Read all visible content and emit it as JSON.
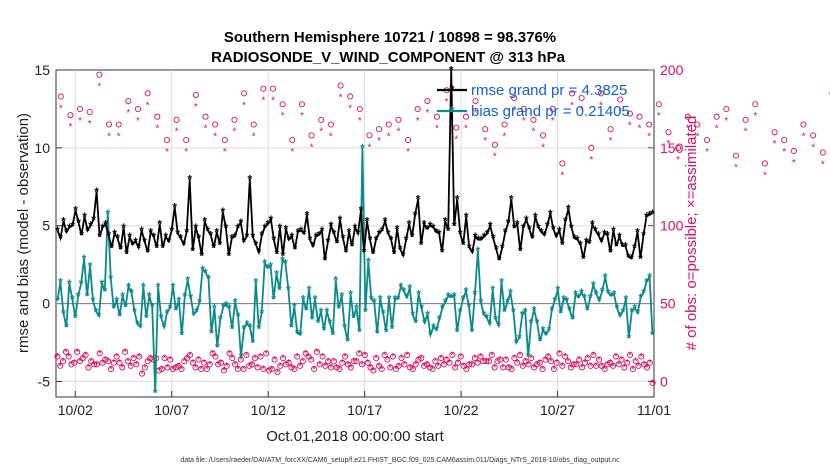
{
  "chart_data": {
    "type": "line",
    "title": "Southern Hemisphere 10721 / 10898 = 98.376%",
    "subtitle": "RADIOSONDE_V_WIND_COMPONENT @ 313 hPa",
    "xlabel": "Oct.01,2018 00:00:00 start",
    "ylabel": "rmse and bias (model - observation)",
    "ylabel_right": "# of obs: o=possible; ×=assimilated",
    "x_ticks": [
      {
        "value": 1.25,
        "label": "10/02"
      },
      {
        "value": 6.25,
        "label": "10/07"
      },
      {
        "value": 11.25,
        "label": "10/12"
      },
      {
        "value": 16.25,
        "label": "10/17"
      },
      {
        "value": 21.25,
        "label": "10/22"
      },
      {
        "value": 26.25,
        "label": "10/27"
      },
      {
        "value": 31.25,
        "label": "11/01"
      }
    ],
    "xlim": [
      0.25,
      31.25
    ],
    "ylim": [
      -6,
      15
    ],
    "ylim_right": [
      -10,
      200
    ],
    "y_ticks": [
      -5,
      0,
      5,
      10,
      15
    ],
    "y_ticks_right": [
      0,
      50,
      100,
      150,
      200
    ],
    "grid": true,
    "legend_position": "top-right",
    "series": [
      {
        "name": "rmse",
        "legend": "rmse grand pr = 4.3825",
        "color": "#000000",
        "marker": "asterisk",
        "values": [
          4.7,
          4.2,
          5.3,
          4.6,
          4.9,
          5.0,
          6.0,
          5.2,
          4.4,
          5.6,
          4.7,
          5.0,
          5.4,
          7.2,
          4.3,
          4.9,
          5.1,
          4.4,
          3.6,
          4.5,
          4.2,
          3.5,
          4.9,
          3.2,
          4.3,
          3.8,
          4.0,
          3.6,
          4.7,
          4.0,
          3.3,
          4.6,
          4.3,
          3.6,
          5.1,
          3.6,
          4.3,
          4.0,
          4.7,
          6.2,
          4.5,
          4.2,
          3.8,
          4.6,
          8.0,
          3.4,
          4.9,
          4.2,
          3.1,
          5.3,
          4.7,
          4.4,
          3.6,
          4.6,
          3.8,
          5.9,
          4.9,
          3.1,
          4.2,
          4.3,
          4.9,
          5.2,
          4.0,
          4.3,
          8.0,
          4.3,
          3.8,
          3.3,
          4.4,
          4.9,
          5.1,
          5.4,
          4.1,
          3.2,
          4.9,
          3.1,
          4.8,
          4.1,
          4.3,
          3.5,
          4.6,
          4.7,
          4.5,
          5.7,
          4.1,
          3.7,
          4.3,
          4.4,
          4.7,
          2.8,
          4.0,
          5.0,
          4.5,
          3.9,
          5.4,
          4.2,
          3.3,
          4.6,
          3.7,
          4.9,
          4.5,
          6.0,
          3.3,
          5.3,
          4.1,
          3.2,
          4.1,
          4.5,
          4.7,
          5.3,
          4.5,
          4.1,
          3.2,
          4.8,
          3.5,
          3.1,
          4.1,
          5.1,
          4.3,
          5.7,
          6.7,
          3.8,
          5.1,
          4.8,
          5.0,
          4.9,
          4.6,
          4.5,
          3.3,
          5.3,
          4.7,
          15.0,
          5.0,
          6.7,
          4.5,
          3.8,
          5.6,
          3.6,
          3.3,
          4.3,
          4.1,
          4.1,
          4.3,
          4.5,
          5.0,
          4.2,
          3.5,
          2.8,
          3.6,
          4.6,
          5.2,
          6.7,
          4.9,
          5.1,
          3.4,
          4.9,
          5.4,
          4.8,
          4.2,
          5.6,
          4.9,
          4.6,
          4.4,
          5.0,
          5.8,
          4.8,
          4.3,
          4.7,
          3.8,
          5.3,
          6.1,
          4.9,
          4.2,
          4.1,
          3.8,
          2.9,
          4.0,
          3.9,
          5.1,
          4.7,
          4.4,
          4.0,
          4.5,
          4.4,
          3.3,
          4.7,
          3.7,
          4.3,
          3.7,
          3.7,
          3.0,
          2.9,
          3.6,
          4.6,
          2.9,
          4.4,
          5.6,
          5.7,
          5.8
        ]
      },
      {
        "name": "bias",
        "legend": "bias grand pr = 0.21405",
        "color": "#0b8a8a",
        "marker": "asterisk",
        "values": [
          0.2,
          1.4,
          -0.6,
          -1.5,
          1.3,
          0.3,
          -0.9,
          0.5,
          1.3,
          2.9,
          0.5,
          2.4,
          0.2,
          -0.5,
          -0.8,
          1.3,
          0.8,
          5.8,
          1.6,
          -0.3,
          0.2,
          -0.8,
          0.5,
          -0.2,
          1.1,
          0.7,
          -0.5,
          -1.3,
          -1.5,
          1.1,
          -0.9,
          0.5,
          -0.2,
          -5.7,
          1.1,
          -0.9,
          -1.5,
          -0.6,
          -0.3,
          1.1,
          -0.4,
          0.2,
          -2.0,
          0.5,
          1.5,
          0.4,
          -0.7,
          -0.5,
          0.1,
          2.2,
          2.0,
          1.6,
          -1.9,
          -0.3,
          -2.8,
          -1.0,
          -0.2,
          -0.1,
          -0.3,
          -1.6,
          0.1,
          -0.8,
          -3.4,
          -1.6,
          -1.3,
          -1.5,
          -2.5,
          1.4,
          -1.6,
          -0.6,
          2.6,
          2.3,
          2.4,
          0.3,
          1.9,
          0.9,
          2.8,
          2.6,
          0.9,
          -1.5,
          -0.2,
          -1.9,
          -2.0,
          0.3,
          -0.4,
          0.9,
          -1.0,
          0.3,
          -1.2,
          -0.5,
          -1.7,
          -0.5,
          -1.2,
          -2.0,
          1.5,
          -0.3,
          0.5,
          -1.5,
          -2.4,
          0.6,
          -0.9,
          -0.3,
          -1.8,
          10.0,
          -0.5,
          2.7,
          0.3,
          0.1,
          -1.9,
          0.3,
          -0.6,
          -1.8,
          0.3,
          -1.6,
          0.3,
          0.3,
          1.1,
          0.8,
          0.4,
          1.0,
          -0.7,
          -1.2,
          0.6,
          -0.3,
          -1.2,
          -0.7,
          -2.0,
          -1.5,
          -1.7,
          -1.0,
          -0.3,
          0.1,
          0.5,
          0.4,
          0.5,
          -1.8,
          -0.5,
          0.3,
          0.8,
          -0.2,
          -1.8,
          0.6,
          3.4,
          0.1,
          -0.7,
          -0.9,
          -1.3,
          0.9,
          -1.0,
          -1.4,
          1.4,
          -0.5,
          0.1,
          0.7,
          -0.5,
          -2.5,
          -2.2,
          -0.7,
          -0.5,
          -3.4,
          -1.2,
          -0.4,
          -1.2,
          -2.4,
          -1.7,
          -2.0,
          -1.7,
          -0.4,
          0.2,
          0.9,
          -0.6,
          0.3,
          0.2,
          -0.4,
          -1.0,
          0.6,
          0.4,
          0.7,
          0.4,
          -0.4,
          0.4,
          1.2,
          0.6,
          0.2,
          0.8,
          1.7,
          0.7,
          0.5,
          0.6,
          -0.3,
          -0.8,
          -0.5,
          0.3,
          -2.2,
          -0.5,
          -0.3,
          -0.6,
          0.4,
          0.7,
          1.4,
          1.7,
          -2.0
        ]
      },
      {
        "name": "possible",
        "axis": "right",
        "marker": "circle",
        "color": "#e0115f",
        "x_step": 1.0,
        "x_start": 0.0,
        "values": [
          0,
          183,
          5,
          0,
          0,
          171,
          5,
          0,
          0,
          175,
          5,
          0,
          0,
          173,
          5,
          0,
          0,
          197,
          3,
          0,
          0,
          165,
          0,
          0,
          0,
          165,
          4,
          0,
          0,
          180,
          3,
          0,
          0,
          175,
          1,
          0,
          0,
          185,
          1,
          0,
          0,
          170,
          0,
          0,
          0,
          155,
          0,
          0,
          0,
          168,
          0,
          0,
          0,
          155,
          0,
          0,
          0,
          184,
          4,
          0,
          0,
          170,
          1,
          0,
          0,
          165,
          0,
          0,
          0,
          155,
          0,
          0,
          0,
          168,
          0,
          0,
          0,
          185,
          0,
          0,
          0,
          165,
          2,
          0,
          0,
          188,
          0,
          0,
          0,
          188,
          3,
          0,
          0,
          178,
          0,
          0,
          0,
          155,
          0,
          0,
          0,
          178,
          0,
          0,
          0,
          158,
          0,
          0,
          0,
          168,
          0,
          0,
          0,
          165,
          3,
          0,
          0,
          190,
          0,
          0,
          0,
          183,
          1,
          0,
          0,
          175,
          3,
          0,
          0,
          158,
          0,
          0,
          0,
          162,
          0,
          0,
          0,
          165,
          0,
          0,
          0,
          168,
          0,
          0,
          0,
          155,
          0,
          0,
          0,
          175,
          0,
          0,
          0,
          180,
          0,
          0,
          0,
          170,
          0,
          0,
          0,
          187,
          0,
          0,
          0,
          163,
          2,
          0,
          0,
          170,
          0,
          0,
          0,
          180,
          0,
          0,
          0,
          162,
          0,
          0,
          0,
          152,
          0,
          0,
          0,
          165,
          0,
          0,
          0,
          182,
          0,
          0,
          0,
          175,
          0,
          0,
          0,
          168,
          0,
          0,
          0,
          158,
          0,
          0,
          0,
          175,
          0,
          0,
          0,
          140,
          0,
          0,
          0,
          185,
          0,
          0,
          0,
          182,
          0,
          0,
          0,
          150,
          0,
          0,
          0,
          185,
          0,
          0,
          0,
          162,
          0,
          0,
          0,
          181,
          0,
          0,
          0,
          172,
          0,
          0,
          0,
          170,
          0,
          0,
          0,
          165,
          0,
          0,
          0,
          178,
          0,
          0,
          0,
          160,
          0,
          0,
          0,
          150,
          0,
          0,
          0,
          170,
          0,
          0,
          0,
          165,
          0,
          0,
          0,
          155,
          0,
          0,
          0,
          170,
          0,
          0,
          0,
          175,
          0,
          0,
          0,
          145,
          0,
          0,
          0,
          168,
          0,
          0,
          0,
          178,
          0,
          0,
          0,
          140,
          0,
          0,
          0,
          160,
          0,
          0,
          0,
          155,
          0,
          0,
          0,
          148,
          0,
          0,
          0,
          165,
          0,
          0,
          0,
          158,
          0,
          0,
          0,
          147,
          0,
          0,
          0,
          185,
          0,
          0,
          0,
          135,
          0,
          0,
          0,
          150,
          0,
          0,
          0,
          165,
          0,
          0,
          0,
          182,
          0,
          0,
          0,
          160,
          0,
          0,
          0,
          143,
          0,
          0,
          0,
          138,
          0,
          0,
          0,
          155,
          0,
          0,
          0,
          148,
          0,
          0,
          0,
          175,
          0,
          0,
          0,
          182,
          0,
          0,
          0,
          150,
          0,
          0,
          0,
          168,
          0,
          0,
          0,
          140,
          0,
          0,
          0,
          182,
          0,
          0,
          0,
          185,
          0,
          0,
          0,
          165,
          0,
          0,
          0,
          165,
          0,
          0,
          0,
          160,
          0,
          0,
          0,
          178,
          0,
          0,
          0,
          185,
          0
        ]
      },
      {
        "name": "possible_low",
        "axis": "right",
        "marker": "circle",
        "color": "#e0115f",
        "values": [
          16,
          10,
          13,
          19,
          16,
          11,
          12,
          19,
          13,
          15,
          17,
          9,
          13,
          11,
          11,
          18,
          12,
          14,
          13,
          8,
          12,
          16,
          12,
          9,
          19,
          13,
          10,
          15,
          11,
          16,
          5,
          9,
          13,
          15,
          14,
          15,
          7,
          8,
          15,
          9,
          14,
          8,
          9,
          10,
          8,
          13,
          15,
          17,
          12,
          9,
          14,
          8,
          12,
          8,
          11,
          18,
          16,
          11,
          12,
          7,
          10,
          18,
          15,
          11,
          8,
          14,
          8,
          17,
          10,
          11,
          15,
          9,
          16,
          8,
          18,
          7,
          8,
          14,
          6,
          10,
          15,
          11,
          12,
          9,
          8,
          16,
          10,
          13,
          18,
          16,
          14,
          8,
          19,
          11,
          16,
          10,
          13,
          9,
          13,
          9,
          8,
          12,
          16,
          11,
          9,
          13,
          13,
          18,
          11,
          17,
          12,
          9,
          7,
          15,
          10,
          8,
          17,
          14,
          9,
          16,
          8,
          10,
          15,
          11,
          17,
          9,
          8,
          11,
          14,
          15,
          10,
          11,
          9,
          8,
          13,
          10,
          15,
          11,
          14,
          12,
          17,
          9,
          12,
          16,
          10,
          8,
          11,
          11,
          15,
          12,
          16,
          13,
          13,
          13,
          17,
          9,
          13,
          14,
          9,
          14,
          9,
          8,
          15,
          12,
          17,
          10,
          13,
          11,
          15,
          9,
          11,
          12,
          8,
          14,
          16,
          13,
          8,
          12,
          18,
          10,
          16,
          13,
          9,
          11,
          11,
          14,
          9,
          12,
          15,
          10,
          17,
          10,
          14,
          10,
          8,
          11,
          12,
          10,
          16,
          11,
          14,
          9,
          12,
          17,
          8,
          13,
          10,
          16,
          11,
          9,
          12,
          -1
        ]
      }
    ],
    "footnote": "data file: /Users/raeder/DAI/ATM_forcXX/CAM6_setup/f.e21.FHIST_BGC.f09_025.CAM6assim.011/Diags_NTrS_2018-10/obs_diag_output.nc"
  }
}
